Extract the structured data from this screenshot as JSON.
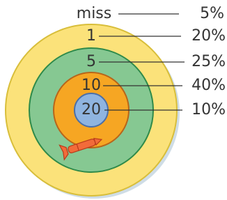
{
  "rings": [
    {
      "label": "miss",
      "probability": "5%"
    },
    {
      "label": "1",
      "probability": "20%"
    },
    {
      "label": "5",
      "probability": "25%"
    },
    {
      "label": "10",
      "probability": "40%"
    },
    {
      "label": "20",
      "probability": "10%"
    }
  ]
}
